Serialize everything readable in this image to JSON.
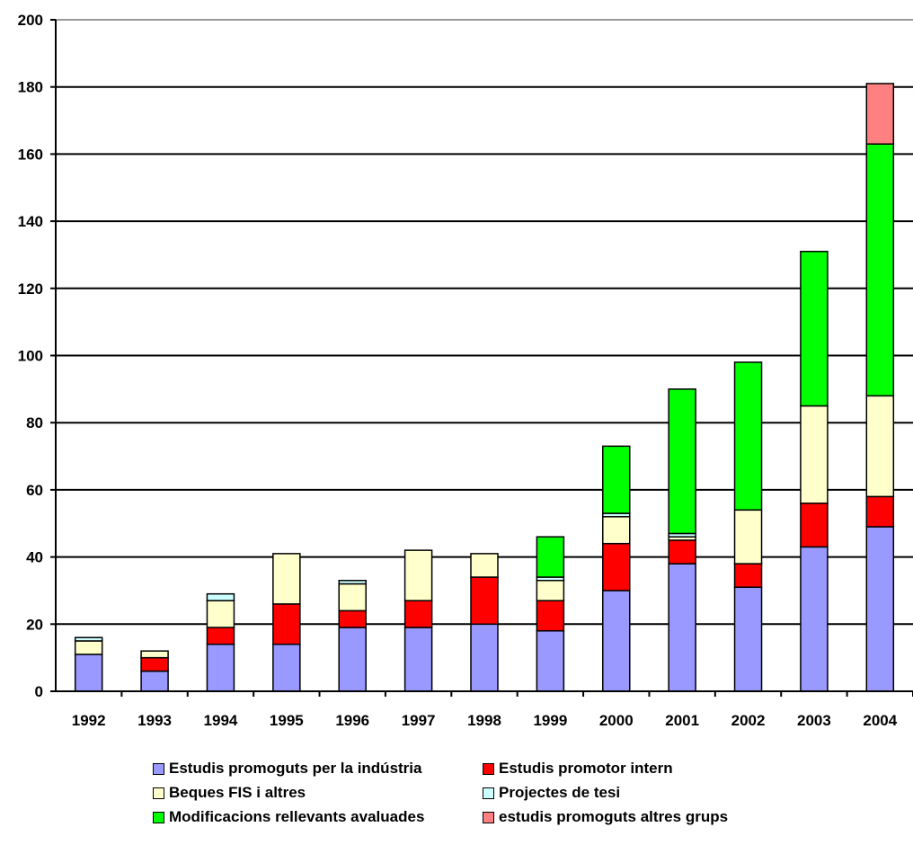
{
  "chart_data": {
    "type": "bar",
    "stacked": true,
    "categories": [
      "1992",
      "1993",
      "1994",
      "1995",
      "1996",
      "1997",
      "1998",
      "1999",
      "2000",
      "2001",
      "2002",
      "2003",
      "2004"
    ],
    "ylim": [
      0,
      200
    ],
    "yticks": [
      0,
      20,
      40,
      60,
      80,
      100,
      120,
      140,
      160,
      180,
      200
    ],
    "grid": true,
    "legend_position": "bottom",
    "series": [
      {
        "name": "Estudis promoguts per la indústria",
        "color": "#9999ff",
        "values": [
          11,
          6,
          14,
          14,
          19,
          19,
          20,
          18,
          30,
          38,
          31,
          43,
          49
        ]
      },
      {
        "name": "Estudis promotor intern",
        "color": "#ff0000",
        "values": [
          0,
          4,
          5,
          12,
          5,
          8,
          14,
          9,
          14,
          7,
          7,
          13,
          9
        ]
      },
      {
        "name": "Beques FIS i altres",
        "color": "#ffffcc",
        "values": [
          4,
          2,
          8,
          15,
          8,
          15,
          7,
          6,
          8,
          1,
          16,
          29,
          30
        ]
      },
      {
        "name": "Projectes de tesi",
        "color": "#ccffff",
        "values": [
          1,
          0,
          2,
          0,
          1,
          0,
          0,
          1,
          1,
          1,
          0,
          0,
          0
        ]
      },
      {
        "name": "Modificacions rellevants avaluades",
        "color": "#00ff00",
        "values": [
          0,
          0,
          0,
          0,
          0,
          0,
          0,
          12,
          20,
          43,
          44,
          46,
          75
        ]
      },
      {
        "name": "estudis promoguts altres grups",
        "color": "#ff8080",
        "values": [
          0,
          0,
          0,
          0,
          0,
          0,
          0,
          0,
          0,
          0,
          0,
          0,
          18
        ]
      }
    ]
  }
}
